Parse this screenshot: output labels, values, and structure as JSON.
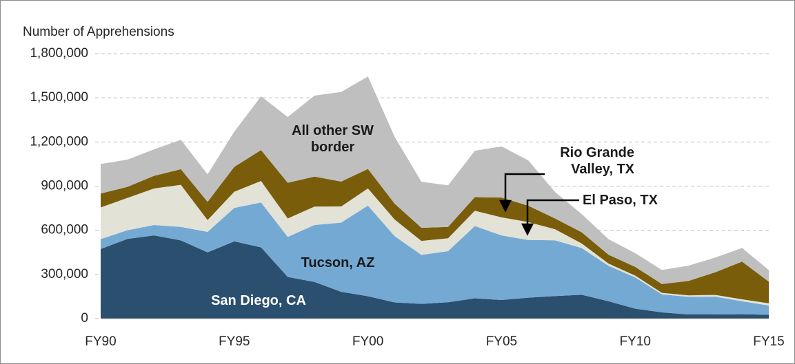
{
  "chart_data": {
    "type": "stacked_area",
    "y_label": "Number of Apprehensions",
    "categories": [
      "FY90",
      null,
      null,
      null,
      null,
      "FY95",
      null,
      null,
      null,
      null,
      "FY00",
      null,
      null,
      null,
      null,
      "FY05",
      null,
      null,
      null,
      null,
      "FY10",
      null,
      null,
      null,
      null,
      "FY15"
    ],
    "series": [
      {
        "name": "San Diego, CA",
        "color": "#2b4f6e",
        "label_color": "#ffffff",
        "values": [
          473000,
          541000,
          565000,
          531000,
          450000,
          525000,
          484000,
          283000,
          249000,
          182000,
          152000,
          110000,
          100000,
          111000,
          138000,
          126000,
          142000,
          153000,
          162000,
          118000,
          68000,
          42000,
          28000,
          28000,
          30000,
          26000
        ]
      },
      {
        "name": "Tucson, AZ",
        "color": "#74a9d4",
        "label_color": "#1a1a1a",
        "values": [
          67000,
          59000,
          71000,
          92000,
          139000,
          227000,
          305000,
          272000,
          387000,
          470000,
          616000,
          450000,
          333000,
          347000,
          491000,
          439000,
          392000,
          379000,
          317000,
          241000,
          212000,
          123000,
          120000,
          121000,
          88000,
          63000
        ]
      },
      {
        "name": "El Paso, TX",
        "color": "#e3e2d6",
        "label_color": "#1a1a1a",
        "values": [
          215000,
          220000,
          248000,
          286000,
          80000,
          110000,
          146000,
          125000,
          125000,
          110000,
          116000,
          113000,
          95000,
          88000,
          104000,
          123000,
          122000,
          75000,
          31000,
          15000,
          12000,
          10000,
          10000,
          12000,
          13000,
          15000
        ]
      },
      {
        "name": "Rio Grande Valley, TX",
        "color": "#7a5d0a",
        "label_color": "#1a1a1a",
        "values": [
          95000,
          75000,
          86000,
          106000,
          124000,
          169000,
          210000,
          243000,
          204000,
          169000,
          133000,
          108000,
          89000,
          77000,
          92000,
          134000,
          111000,
          73000,
          76000,
          60000,
          59000,
          60000,
          98000,
          154000,
          256000,
          147000
        ]
      },
      {
        "name": "All other SW border",
        "color": "#bfbfbf",
        "label_color": "#1a1a1a",
        "values": [
          200000,
          185000,
          180000,
          200000,
          187000,
          239000,
          365000,
          447000,
          550000,
          609000,
          628000,
          454000,
          313000,
          282000,
          315000,
          348000,
          308000,
          180000,
          124000,
          106000,
          94000,
          95000,
          104000,
          100000,
          93000,
          79000
        ]
      }
    ],
    "ylim": [
      0,
      1800000
    ],
    "yticks": [
      0,
      {
        "value": 300000,
        "label": "300,000"
      },
      {
        "value": 600000,
        "label": "600,000"
      },
      {
        "value": 900000,
        "label": "900,000"
      },
      {
        "value": 1200000,
        "label": "1,200,000"
      },
      {
        "value": 1500000,
        "label": "1,500,000"
      },
      {
        "value": 1800000,
        "label": "1,800,000"
      }
    ],
    "grid": true
  }
}
